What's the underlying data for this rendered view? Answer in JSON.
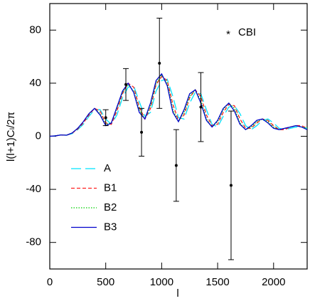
{
  "chart_data": {
    "type": "line",
    "xlabel": "l",
    "ylabel": "l(l+1)Cₗ/2π",
    "xlim": [
      0,
      2300
    ],
    "ylim": [
      -100,
      100
    ],
    "xticks": [
      0,
      500,
      1000,
      1500,
      2000
    ],
    "yticks": [
      -80,
      -40,
      0,
      40,
      80
    ],
    "x": [
      0,
      50,
      100,
      150,
      200,
      250,
      300,
      350,
      400,
      450,
      500,
      550,
      600,
      650,
      700,
      750,
      800,
      850,
      900,
      950,
      1000,
      1050,
      1100,
      1150,
      1200,
      1250,
      1300,
      1350,
      1400,
      1450,
      1500,
      1550,
      1600,
      1650,
      1700,
      1750,
      1800,
      1850,
      1900,
      1950,
      2000,
      2050,
      2100,
      2150,
      2200,
      2250,
      2300
    ],
    "series": [
      {
        "name": "A",
        "color": "#00e5ff",
        "dash": "long",
        "values": [
          0,
          0.3,
          1,
          0.8,
          2,
          5,
          9,
          15,
          20,
          20,
          13,
          9,
          16,
          29,
          37,
          38,
          26,
          15,
          18,
          34,
          42,
          43,
          30,
          14,
          13,
          25,
          33,
          32,
          20,
          9,
          7,
          15,
          22,
          23,
          17,
          8,
          5,
          8,
          12,
          13,
          10,
          6,
          5,
          6,
          7,
          7,
          6
        ]
      },
      {
        "name": "B1",
        "color": "#ff2020",
        "dash": "short",
        "values": [
          0,
          0.3,
          1,
          0.8,
          2.3,
          5.5,
          10,
          16,
          21,
          19,
          10,
          9,
          19,
          32,
          40,
          37,
          22,
          13,
          21,
          39,
          45,
          42,
          24,
          12,
          16,
          29,
          35,
          30,
          16,
          8,
          9,
          18,
          24,
          23,
          13,
          6,
          6,
          10,
          13,
          12,
          8,
          5,
          5,
          7,
          8,
          8,
          6
        ]
      },
      {
        "name": "B2",
        "color": "#00d000",
        "dash": "dotted",
        "values": [
          0,
          0.3,
          1,
          0.8,
          2.5,
          6,
          11,
          17,
          21,
          17,
          9,
          10,
          21,
          33,
          39,
          34,
          20,
          13,
          23,
          40,
          46,
          40,
          20,
          11,
          18,
          30,
          35,
          27,
          13,
          7,
          11,
          20,
          25,
          21,
          10,
          5,
          7,
          11,
          13,
          11,
          7,
          5,
          6,
          7,
          8,
          7,
          6
        ]
      },
      {
        "name": "B3",
        "color": "#0000cc",
        "dash": "solid",
        "values": [
          0,
          0.3,
          1,
          0.8,
          2.5,
          6,
          11,
          17,
          21,
          16,
          8,
          10,
          22,
          34,
          40,
          33,
          18,
          13,
          25,
          42,
          47,
          38,
          18,
          11,
          20,
          32,
          35,
          25,
          12,
          7,
          12,
          21,
          25,
          19,
          9,
          5,
          8,
          12,
          13,
          10,
          6,
          5,
          6,
          7,
          8,
          7,
          5
        ]
      }
    ],
    "points": {
      "name": "CBI",
      "color": "#000000",
      "x": [
        500,
        680,
        820,
        980,
        1130,
        1350,
        1620
      ],
      "values": [
        14,
        39,
        3,
        55,
        -22,
        22,
        -37
      ],
      "errors": [
        6,
        12,
        18,
        34,
        27,
        26,
        56
      ]
    }
  }
}
